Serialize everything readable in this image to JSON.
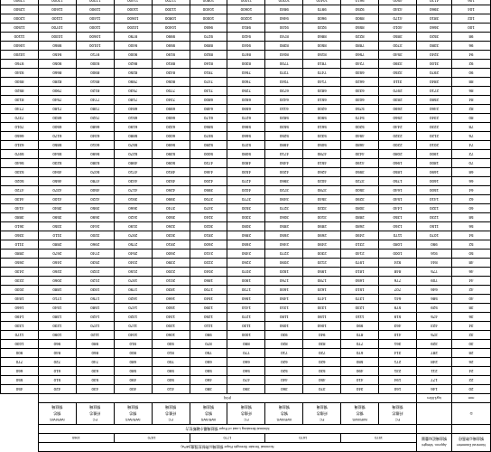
{
  "header": {
    "row1": {
      "c0": "Nominal Diameter\n钢丝绳公称直径",
      "c1": "Approx. Weight\n钢丝绳近似重量",
      "c2": "Nominal Tensile Strength Rope 钢丝绳公称抗拉强度(MPa)"
    },
    "row2": [
      "1570",
      "1670",
      "1770",
      "1870",
      "1960"
    ],
    "row3": {
      "c2": "Minimal Breaking Load of Rope 钢丝绳最小破断拉力"
    },
    "row4": [
      "D",
      "",
      "FC\n纤维芯\n钢丝绳",
      "IWR/IWS\n钢芯\n钢丝绳",
      "FC\n纤维芯\n钢丝绳",
      "IWR/IWS\n钢芯\n钢丝绳",
      "FC\n纤维芯\n钢丝绳",
      "IWR/IWS\n钢芯\n钢丝绳",
      "FC\n纤维芯\n钢丝绳",
      "IWR/IWS\n钢芯\n钢丝绳",
      "FC\n纤维芯\n钢丝绳",
      "IWR/IWS\n钢芯\n钢丝绳"
    ],
    "row5": [
      "mm",
      "kg/100m",
      "(KN)"
    ]
  },
  "rows": [
    [
      "20",
      146,
      160,
      340,
      370,
      360,
      390,
      380,
      410,
      400,
      430,
      420,
      450
    ],
    [
      "22",
      177,
      194,
      410,
      450,
      440,
      470,
      460,
      500,
      490,
      530,
      510,
      550
    ],
    [
      "24",
      211,
      231,
      490,
      530,
      520,
      560,
      550,
      590,
      580,
      630,
      610,
      660
    ],
    [
      "26",
      248,
      271,
      580,
      620,
      620,
      660,
      650,
      700,
      680,
      740,
      720,
      770
    ],
    [
      "28",
      287,
      314,
      670,
      720,
      710,
      770,
      750,
      810,
      800,
      860,
      840,
      900
    ],
    [
      "30",
      329,
      361,
      770,
      830,
      820,
      880,
      870,
      930,
      910,
      980,
      960,
      1030
    ],
    [
      "32",
      375,
      410,
      870,
      940,
      930,
      1000,
      990,
      1060,
      1040,
      1120,
      1090,
      1170
    ],
    [
      "34",
      423,
      463,
      990,
      1060,
      1050,
      1130,
      1110,
      1200,
      1170,
      1270,
      1230,
      1330
    ],
    [
      "36",
      475,
      519,
      1110,
      1190,
      1180,
      1270,
      1250,
      1340,
      1320,
      1420,
      1380,
      1490
    ],
    [
      "38",
      529,
      579,
      1230,
      1330,
      1310,
      1410,
      1390,
      1500,
      1470,
      1580,
      1540,
      1660
    ],
    [
      "40",
      586,
      641,
      1370,
      1470,
      1450,
      1560,
      1540,
      1660,
      1620,
      1750,
      1710,
      1840
    ],
    [
      "42",
      646,
      707,
      1510,
      1620,
      1600,
      1730,
      1700,
      1830,
      1790,
      1930,
      1880,
      2030
    ],
    [
      "44",
      709,
      776,
      1650,
      1780,
      1760,
      1900,
      1860,
      2010,
      1970,
      2120,
      2060,
      2230
    ],
    [
      "46",
      775,
      848,
      1810,
      1950,
      1920,
      2070,
      2040,
      2200,
      2150,
      2320,
      2260,
      2430
    ],
    [
      "48",
      844,
      924,
      1970,
      2120,
      2090,
      2260,
      2220,
      2390,
      2340,
      2530,
      2460,
      2650
    ],
    [
      "50",
      916,
      1000,
      2140,
      2300,
      2270,
      2450,
      2410,
      2600,
      2540,
      2740,
      2670,
      2880
    ],
    [
      "52",
      990,
      1080,
      2310,
      2490,
      2460,
      2650,
      2600,
      2810,
      2750,
      2960,
      2880,
      3110
    ],
    [
      "54",
      1070,
      1170,
      2490,
      2690,
      2650,
      2860,
      2810,
      3030,
      2970,
      3200,
      3110,
      3360
    ],
    [
      "56",
      1150,
      1260,
      2680,
      2890,
      2850,
      3080,
      3020,
      3260,
      3190,
      3440,
      3350,
      3610
    ],
    [
      "58",
      1230,
      1350,
      2880,
      3100,
      3060,
      3300,
      3240,
      3500,
      3420,
      3690,
      3590,
      3880
    ],
    [
      "60",
      1320,
      1440,
      3080,
      3320,
      3270,
      3530,
      3470,
      3740,
      3660,
      3950,
      3840,
      4140
    ],
    [
      "62",
      1410,
      1540,
      3290,
      3540,
      3490,
      3770,
      3700,
      3990,
      3910,
      4220,
      4100,
      4430
    ],
    [
      "64",
      1500,
      1640,
      3500,
      3780,
      3720,
      4020,
      3950,
      4260,
      4170,
      4500,
      4370,
      4720
    ],
    [
      "66",
      1600,
      1750,
      3720,
      4020,
      3960,
      4270,
      4200,
      4530,
      4430,
      4780,
      4650,
      5020
    ],
    [
      "68",
      1690,
      1850,
      3950,
      4260,
      4200,
      4530,
      4460,
      4810,
      4710,
      5070,
      4940,
      5330
    ],
    [
      "70",
      1800,
      1960,
      4190,
      4510,
      4450,
      4800,
      4720,
      5090,
      4980,
      5380,
      5230,
      5640
    ],
    [
      "72",
      1900,
      2080,
      4430,
      4780,
      4710,
      5080,
      5000,
      5390,
      5270,
      5690,
      5540,
      5970
    ],
    [
      "74",
      2010,
      2200,
      4680,
      5050,
      4980,
      5370,
      5280,
      5690,
      5570,
      6010,
      5850,
      6310
    ],
    [
      "76",
      2120,
      2320,
      4940,
      5320,
      5250,
      5660,
      5570,
      6000,
      5880,
      6340,
      6170,
      6650
    ],
    [
      "78",
      2230,
      2440,
      5200,
      5610,
      5530,
      5960,
      5860,
      6320,
      6190,
      6680,
      6500,
      7010
    ],
    [
      "80",
      2340,
      2560,
      5470,
      5900,
      5820,
      6270,
      6170,
      6650,
      6510,
      7020,
      6830,
      7370
    ],
    [
      "82",
      2460,
      2690,
      5750,
      6200,
      6110,
      6590,
      6480,
      6990,
      6840,
      7380,
      7180,
      7740
    ],
    [
      "84",
      2580,
      2830,
      6030,
      6510,
      6420,
      6920,
      6800,
      7340,
      7180,
      7740,
      7540,
      8130
    ],
    [
      "86",
      2710,
      2970,
      6330,
      6820,
      6730,
      7250,
      7130,
      7700,
      7530,
      8120,
      7900,
      8520
    ],
    [
      "88",
      2840,
      3110,
      6620,
      7140,
      7040,
      7600,
      7470,
      8050,
      7890,
      8510,
      8280,
      8930
    ],
    [
      "90",
      2970,
      3250,
      6930,
      7470,
      7370,
      7940,
      7810,
      8430,
      8250,
      8900,
      8660,
      9340
    ],
    [
      "92",
      3100,
      3390,
      7240,
      7810,
      7700,
      8300,
      8160,
      8810,
      8620,
      9300,
      9050,
      9760
    ],
    [
      "94",
      3240,
      3540,
      7560,
      8150,
      8040,
      8670,
      8520,
      9190,
      9000,
      9710,
      9450,
      10200
    ],
    [
      "96",
      3380,
      3700,
      7880,
      8500,
      8380,
      9040,
      8890,
      9590,
      9400,
      10100,
      9860,
      10600
    ],
    [
      "98",
      3520,
      3850,
      8220,
      8860,
      8740,
      9420,
      9270,
      9990,
      9790,
      10600,
      10300,
      11100
    ],
    [
      "100",
      3660,
      4010,
      8550,
      9220,
      9100,
      9810,
      9650,
      10400,
      10200,
      11000,
      10700,
      11500
    ],
    [
      "102",
      3810,
      4170,
      8900,
      9600,
      9460,
      10200,
      10000,
      10800,
      10600,
      11400,
      11100,
      12000
    ],
    [
      "104",
      3960,
      4340,
      9250,
      9970,
      9840,
      10600,
      10400,
      11300,
      11000,
      11900,
      11600,
      12500
    ],
    [
      "106",
      4120,
      4500,
      9610,
      10400,
      10200,
      11000,
      10800,
      11700,
      11400,
      12300,
      12000,
      12900
    ],
    [
      "108",
      4270,
      4670,
      9970,
      10800,
      10600,
      11400,
      11200,
      12100,
      11900,
      12800,
      12500,
      13400
    ],
    [
      "110",
      4430,
      4850,
      10300,
      11200,
      11000,
      11900,
      11700,
      12600,
      12300,
      13300,
      12900,
      13900
    ],
    [
      "112",
      4590,
      5030,
      10700,
      11600,
      11400,
      12300,
      12100,
      13000,
      12800,
      13800,
      13400,
      14400
    ],
    [
      "114",
      4760,
      5210,
      11100,
      12000,
      11800,
      12700,
      12500,
      13500,
      13300,
      14300,
      13900,
      15000
    ],
    [
      "116",
      4930,
      5390,
      11500,
      12400,
      12200,
      13200,
      13000,
      14000,
      13700,
      14800,
      14400,
      15500
    ],
    [
      "118",
      5100,
      5580,
      11900,
      12800,
      12700,
      13700,
      13400,
      14500,
      14200,
      15300,
      14900,
      16000
    ],
    [
      "120",
      5270,
      5770,
      12300,
      13300,
      13100,
      14100,
      13900,
      15000,
      14700,
      15800,
      15400,
      16600
    ]
  ],
  "style": {
    "border_color": "#000",
    "bg": "#fff",
    "font": "Arial",
    "fs_body": 4.5,
    "fs_hdr": 4
  }
}
